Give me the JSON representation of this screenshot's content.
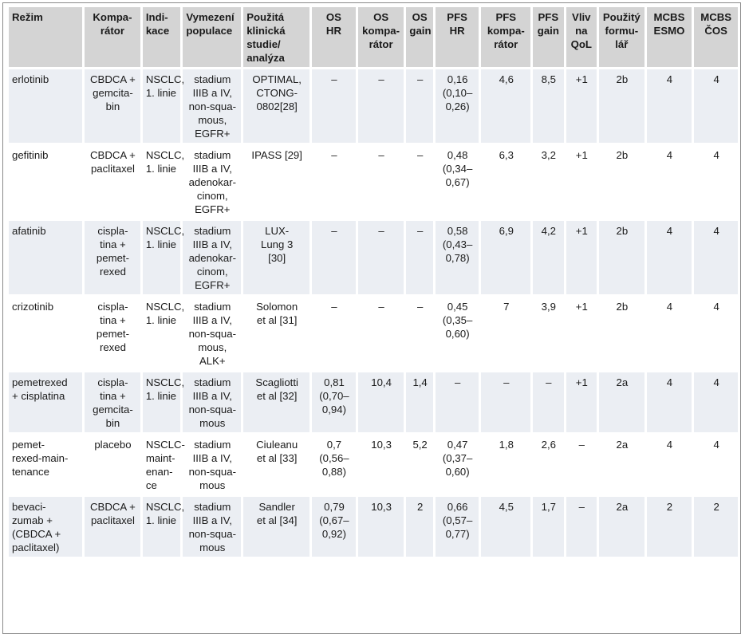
{
  "headers": [
    "Režim",
    "Kompa-\nrátor",
    "Indi-\nkace",
    "Vymezení\npopulace",
    "Použitá\nklinická\nstudie/\nanalýza",
    "OS\nHR",
    "OS\nkompa-\nrátor",
    "OS\ngain",
    "PFS\nHR",
    "PFS\nkompa-\nrátor",
    "PFS\ngain",
    "Vliv\nna\nQoL",
    "Použitý\nformu-\nlář",
    "MCBS\nESMO",
    "MCBS\nČOS"
  ],
  "rows": [
    [
      "erlotinib",
      "CBDCA +\ngemcita-\nbin",
      "NSCLC,\n1. linie",
      "stadium\nIIIB a IV,\nnon-squa-\nmous,\nEGFR+",
      "OPTIMAL,\nCTONG-\n0802[28]",
      "–",
      "–",
      "–",
      "0,16\n(0,10–\n0,26)",
      "4,6",
      "8,5",
      "+1",
      "2b",
      "4",
      "4"
    ],
    [
      "gefitinib",
      "CBDCA +\npaclitaxel",
      "NSCLC,\n1. linie",
      "stadium\nIIIB a IV,\nadenokar-\ncinom,\nEGFR+",
      "IPASS [29]",
      "–",
      "–",
      "–",
      "0,48\n(0,34–\n0,67)",
      "6,3",
      "3,2",
      "+1",
      "2b",
      "4",
      "4"
    ],
    [
      "afatinib",
      "cispla-\ntina +\npemet-\nrexed",
      "NSCLC,\n1. linie",
      "stadium\nIIIB a IV,\nadenokar-\ncinom,\nEGFR+",
      "LUX-\nLung 3\n[30]",
      "–",
      "–",
      "–",
      "0,58\n(0,43–\n0,78)",
      "6,9",
      "4,2",
      "+1",
      "2b",
      "4",
      "4"
    ],
    [
      "crizotinib",
      "cispla-\ntina +\npemet-\nrexed",
      "NSCLC,\n1. linie",
      "stadium\nIIIB a IV,\nnon-squa-\nmous,\nALK+",
      "Solomon\net al [31]",
      "–",
      "–",
      "–",
      "0,45\n(0,35–\n0,60)",
      "7",
      "3,9",
      "+1",
      "2b",
      "4",
      "4"
    ],
    [
      "pemetrexed\n+ cisplatina",
      "cispla-\ntina +\ngemcita-\nbin",
      "NSCLC,\n1. linie",
      "stadium\nIIIB a IV,\nnon-squa-\nmous",
      "Scagliotti\net al [32]",
      "0,81\n(0,70–\n0,94)",
      "10,4",
      "1,4",
      "–",
      "–",
      "–",
      "+1",
      "2a",
      "4",
      "4"
    ],
    [
      "pemet-\nrexed-main-\ntenance",
      "placebo",
      "NSCLC-\nmaint-\nenan-\nce",
      "stadium\nIIIB a IV,\nnon-squa-\nmous",
      "Ciuleanu\net al [33]",
      "0,7\n(0,56–\n0,88)",
      "10,3",
      "5,2",
      "0,47\n(0,37–\n0,60)",
      "1,8",
      "2,6",
      "–",
      "2a",
      "4",
      "4"
    ],
    [
      "bevaci-\nzumab +\n(CBDCA +\npaclitaxel)",
      "CBDCA +\npaclitaxel",
      "NSCLC,\n1. linie",
      "stadium\nIIIB a IV,\nnon-squa-\nmous",
      "Sandler\net al [34]",
      "0,79\n(0,67–\n0,92)",
      "10,3",
      "2",
      "0,66\n(0,57–\n0,77)",
      "4,5",
      "1,7",
      "–",
      "2a",
      "2",
      "2"
    ]
  ]
}
